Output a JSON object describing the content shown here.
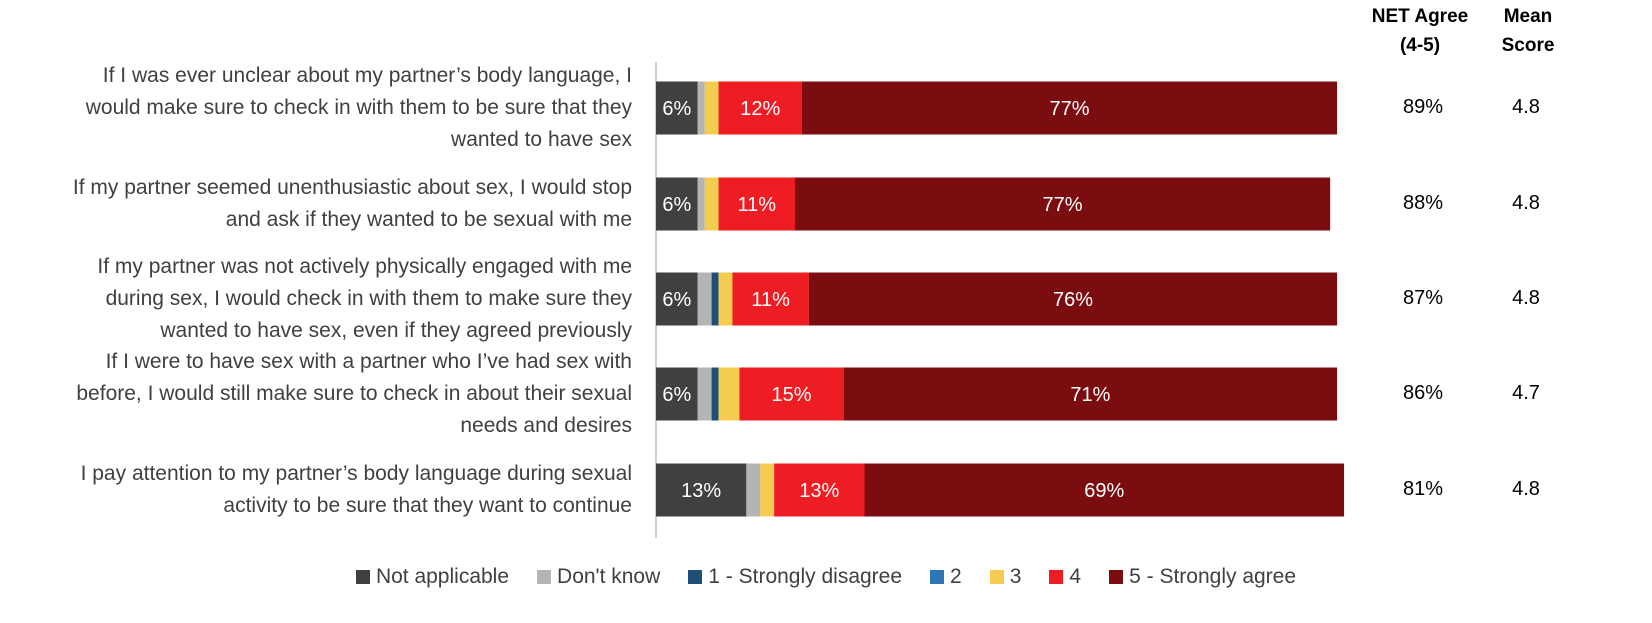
{
  "headers": {
    "net_agree": "NET Agree\n(4-5)",
    "mean": "Mean\nScore"
  },
  "legend": [
    {
      "name": "Not applicable",
      "color": "#404040"
    },
    {
      "name": "Don't know",
      "color": "#b4b4b4"
    },
    {
      "name": "1 - Strongly disagree",
      "color": "#1f4e79"
    },
    {
      "name": "2",
      "color": "#2e75b6"
    },
    {
      "name": "3",
      "color": "#f4cc4f"
    },
    {
      "name": "4",
      "color": "#ee1d23"
    },
    {
      "name": "5 - Strongly agree",
      "color": "#7b0c10"
    }
  ],
  "chart_data": {
    "type": "bar",
    "orientation": "horizontal",
    "stacked": true,
    "xlim": [
      0,
      100
    ],
    "categories": [
      "If I was ever unclear about my partner’s body language, I would make sure to check in with them to be sure that they wanted to have sex",
      "If my partner seemed unenthusiastic about sex, I would stop and ask if they wanted to be sexual with me",
      "If my partner was not actively physically engaged with me during sex, I would check in with them to make sure they wanted to have sex, even if they agreed previously",
      "If I were to have sex with a partner who I’ve had sex with before, I would still make sure to check in about their sexual needs and desires",
      "I pay attention to my partner’s body language during sexual activity to be sure that they want to continue"
    ],
    "category_lines": [
      [
        "If I was ever unclear about my partner’s body language, I",
        "would make sure to check in with them to be sure that they",
        "wanted to have sex"
      ],
      [
        "If my partner seemed unenthusiastic about sex, I would stop",
        "and ask if they wanted to be sexual with me"
      ],
      [
        "If my partner was not actively physically engaged with me",
        "during sex, I would check in with them to make sure they",
        "wanted to have sex, even if they agreed previously"
      ],
      [
        "If I were to have sex with a partner who I’ve had sex with",
        "before, I would still make sure to check in about their sexual",
        "needs and desires"
      ],
      [
        "I pay attention to my partner’s body language during sexual",
        "activity to be sure that they want to continue"
      ]
    ],
    "series": [
      {
        "name": "Not applicable",
        "values": [
          6,
          6,
          6,
          6,
          13
        ],
        "labels": [
          "6%",
          "6%",
          "6%",
          "6%",
          "13%"
        ]
      },
      {
        "name": "Don't know",
        "values": [
          1,
          1,
          2,
          2,
          2
        ],
        "labels": [
          "",
          "",
          "",
          "",
          ""
        ]
      },
      {
        "name": "1 - Strongly disagree",
        "values": [
          0,
          0,
          1,
          1,
          0
        ],
        "labels": [
          "",
          "",
          "",
          "",
          ""
        ]
      },
      {
        "name": "2",
        "values": [
          0,
          0,
          0,
          0,
          0
        ],
        "labels": [
          "",
          "",
          "",
          "",
          ""
        ]
      },
      {
        "name": "3",
        "values": [
          2,
          2,
          2,
          3,
          2
        ],
        "labels": [
          "",
          "",
          "",
          "",
          ""
        ]
      },
      {
        "name": "4",
        "values": [
          12,
          11,
          11,
          15,
          13
        ],
        "labels": [
          "12%",
          "11%",
          "11%",
          "15%",
          "13%"
        ]
      },
      {
        "name": "5 - Strongly agree",
        "values": [
          77,
          77,
          76,
          71,
          69
        ],
        "labels": [
          "77%",
          "77%",
          "76%",
          "71%",
          "69%"
        ]
      }
    ],
    "net_agree": [
      "89%",
      "88%",
      "87%",
      "86%",
      "81%"
    ],
    "mean_score": [
      "4.8",
      "4.8",
      "4.8",
      "4.7",
      "4.8"
    ]
  }
}
